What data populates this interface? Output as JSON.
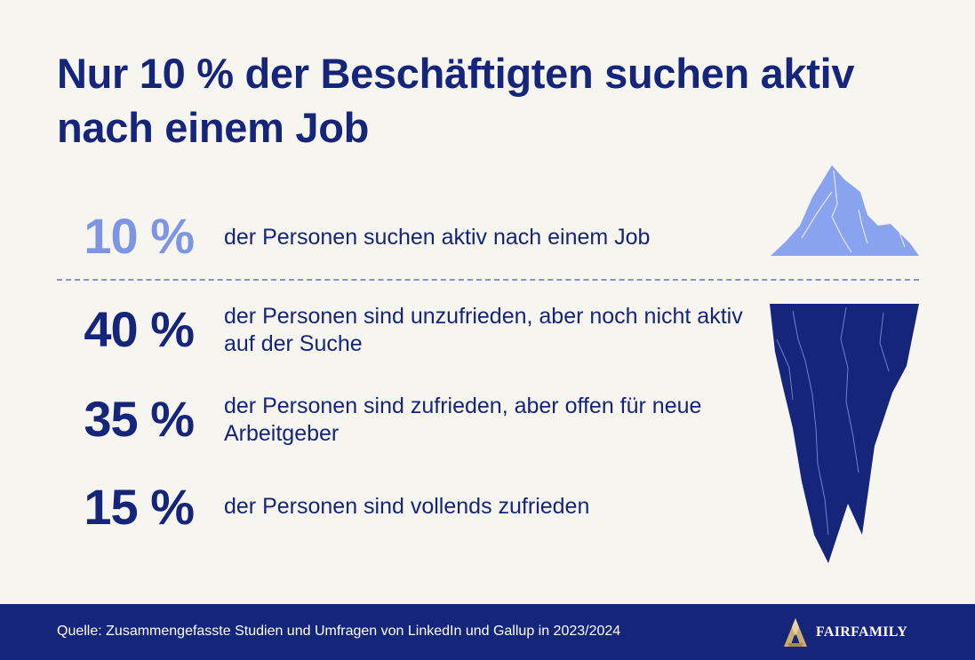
{
  "title": "Nur 10 % der Beschäftigten suchen aktiv nach einem Job",
  "stats": [
    {
      "value": "10 %",
      "text": "der Personen suchen aktiv nach einem Job"
    },
    {
      "value": "40 %",
      "text": "der Personen sind unzufrieden, aber noch nicht aktiv auf der Suche"
    },
    {
      "value": "35 %",
      "text": "der Personen sind zufrieden, aber offen für neue Arbeitgeber"
    },
    {
      "value": "15 %",
      "text": "der Personen sind vollends zufrieden"
    }
  ],
  "footer": {
    "source": "Quelle: Zusammengefasste Studien und Umfragen von LinkedIn und Gallup in 2023/2024",
    "brand": "FAIRFAMILY"
  },
  "colors": {
    "background": "#f7f5f0",
    "primary": "#15257a",
    "accent_light": "#7e95e3",
    "logo_gold": "#c9ad72"
  },
  "icons": {
    "iceberg": "iceberg-illustration",
    "logo": "fairfamily-logo-icon"
  }
}
